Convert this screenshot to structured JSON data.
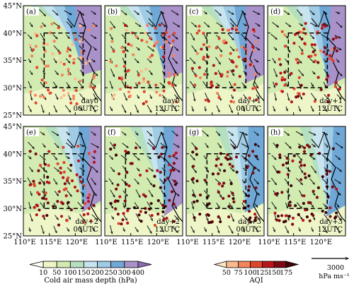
{
  "chart_data": {
    "type": "map",
    "panels": [
      {
        "letter": "(a)",
        "time": [
          "day0",
          "00UTC"
        ]
      },
      {
        "letter": "(b)",
        "time": [
          "day0",
          "12UTC"
        ]
      },
      {
        "letter": "(c)",
        "time": [
          "day+1",
          "00UTC"
        ]
      },
      {
        "letter": "(d)",
        "time": [
          "day+1",
          "12UTC"
        ]
      },
      {
        "letter": "(e)",
        "time": [
          "day+2",
          "00UTC"
        ]
      },
      {
        "letter": "(f)",
        "time": [
          "day+2",
          "12UTC"
        ]
      },
      {
        "letter": "(g)",
        "time": [
          "day+3",
          "00UTC"
        ]
      },
      {
        "letter": "(h)",
        "time": [
          "day+3",
          "12UTC"
        ]
      }
    ],
    "lon_range": [
      110,
      125
    ],
    "lat_range": [
      25,
      45
    ],
    "lon_ticks": [
      "110°E",
      "115°E",
      "120°E"
    ],
    "lat_ticks": [
      "45°N",
      "40°N",
      "35°N",
      "30°N",
      "25°N"
    ],
    "dashed_box": {
      "lon": [
        114,
        121.5
      ],
      "lat": [
        30,
        40
      ]
    },
    "cold_air_colorbar": {
      "title": "Cold air mass depth (hPa)",
      "labels": [
        "10",
        "50",
        "100",
        "150",
        "200",
        "250",
        "300",
        "400"
      ],
      "colors": [
        "#fdfdf3",
        "#eef6c8",
        "#d2ebb0",
        "#b5e0c0",
        "#c8e4ef",
        "#9fcbe4",
        "#6fa8d6",
        "#a892c9",
        "#8d6aaf"
      ]
    },
    "aqi_colorbar": {
      "title": "AQI",
      "labels": [
        "50",
        "75",
        "100",
        "125",
        "150",
        "175"
      ],
      "colors": [
        "#fde4c5",
        "#fbb98c",
        "#f4845c",
        "#e0452e",
        "#b8141c",
        "#7d0a12",
        "#3f0508"
      ]
    },
    "reference_vector": {
      "value": "3000",
      "unit": "hPa ms⁻¹"
    }
  }
}
